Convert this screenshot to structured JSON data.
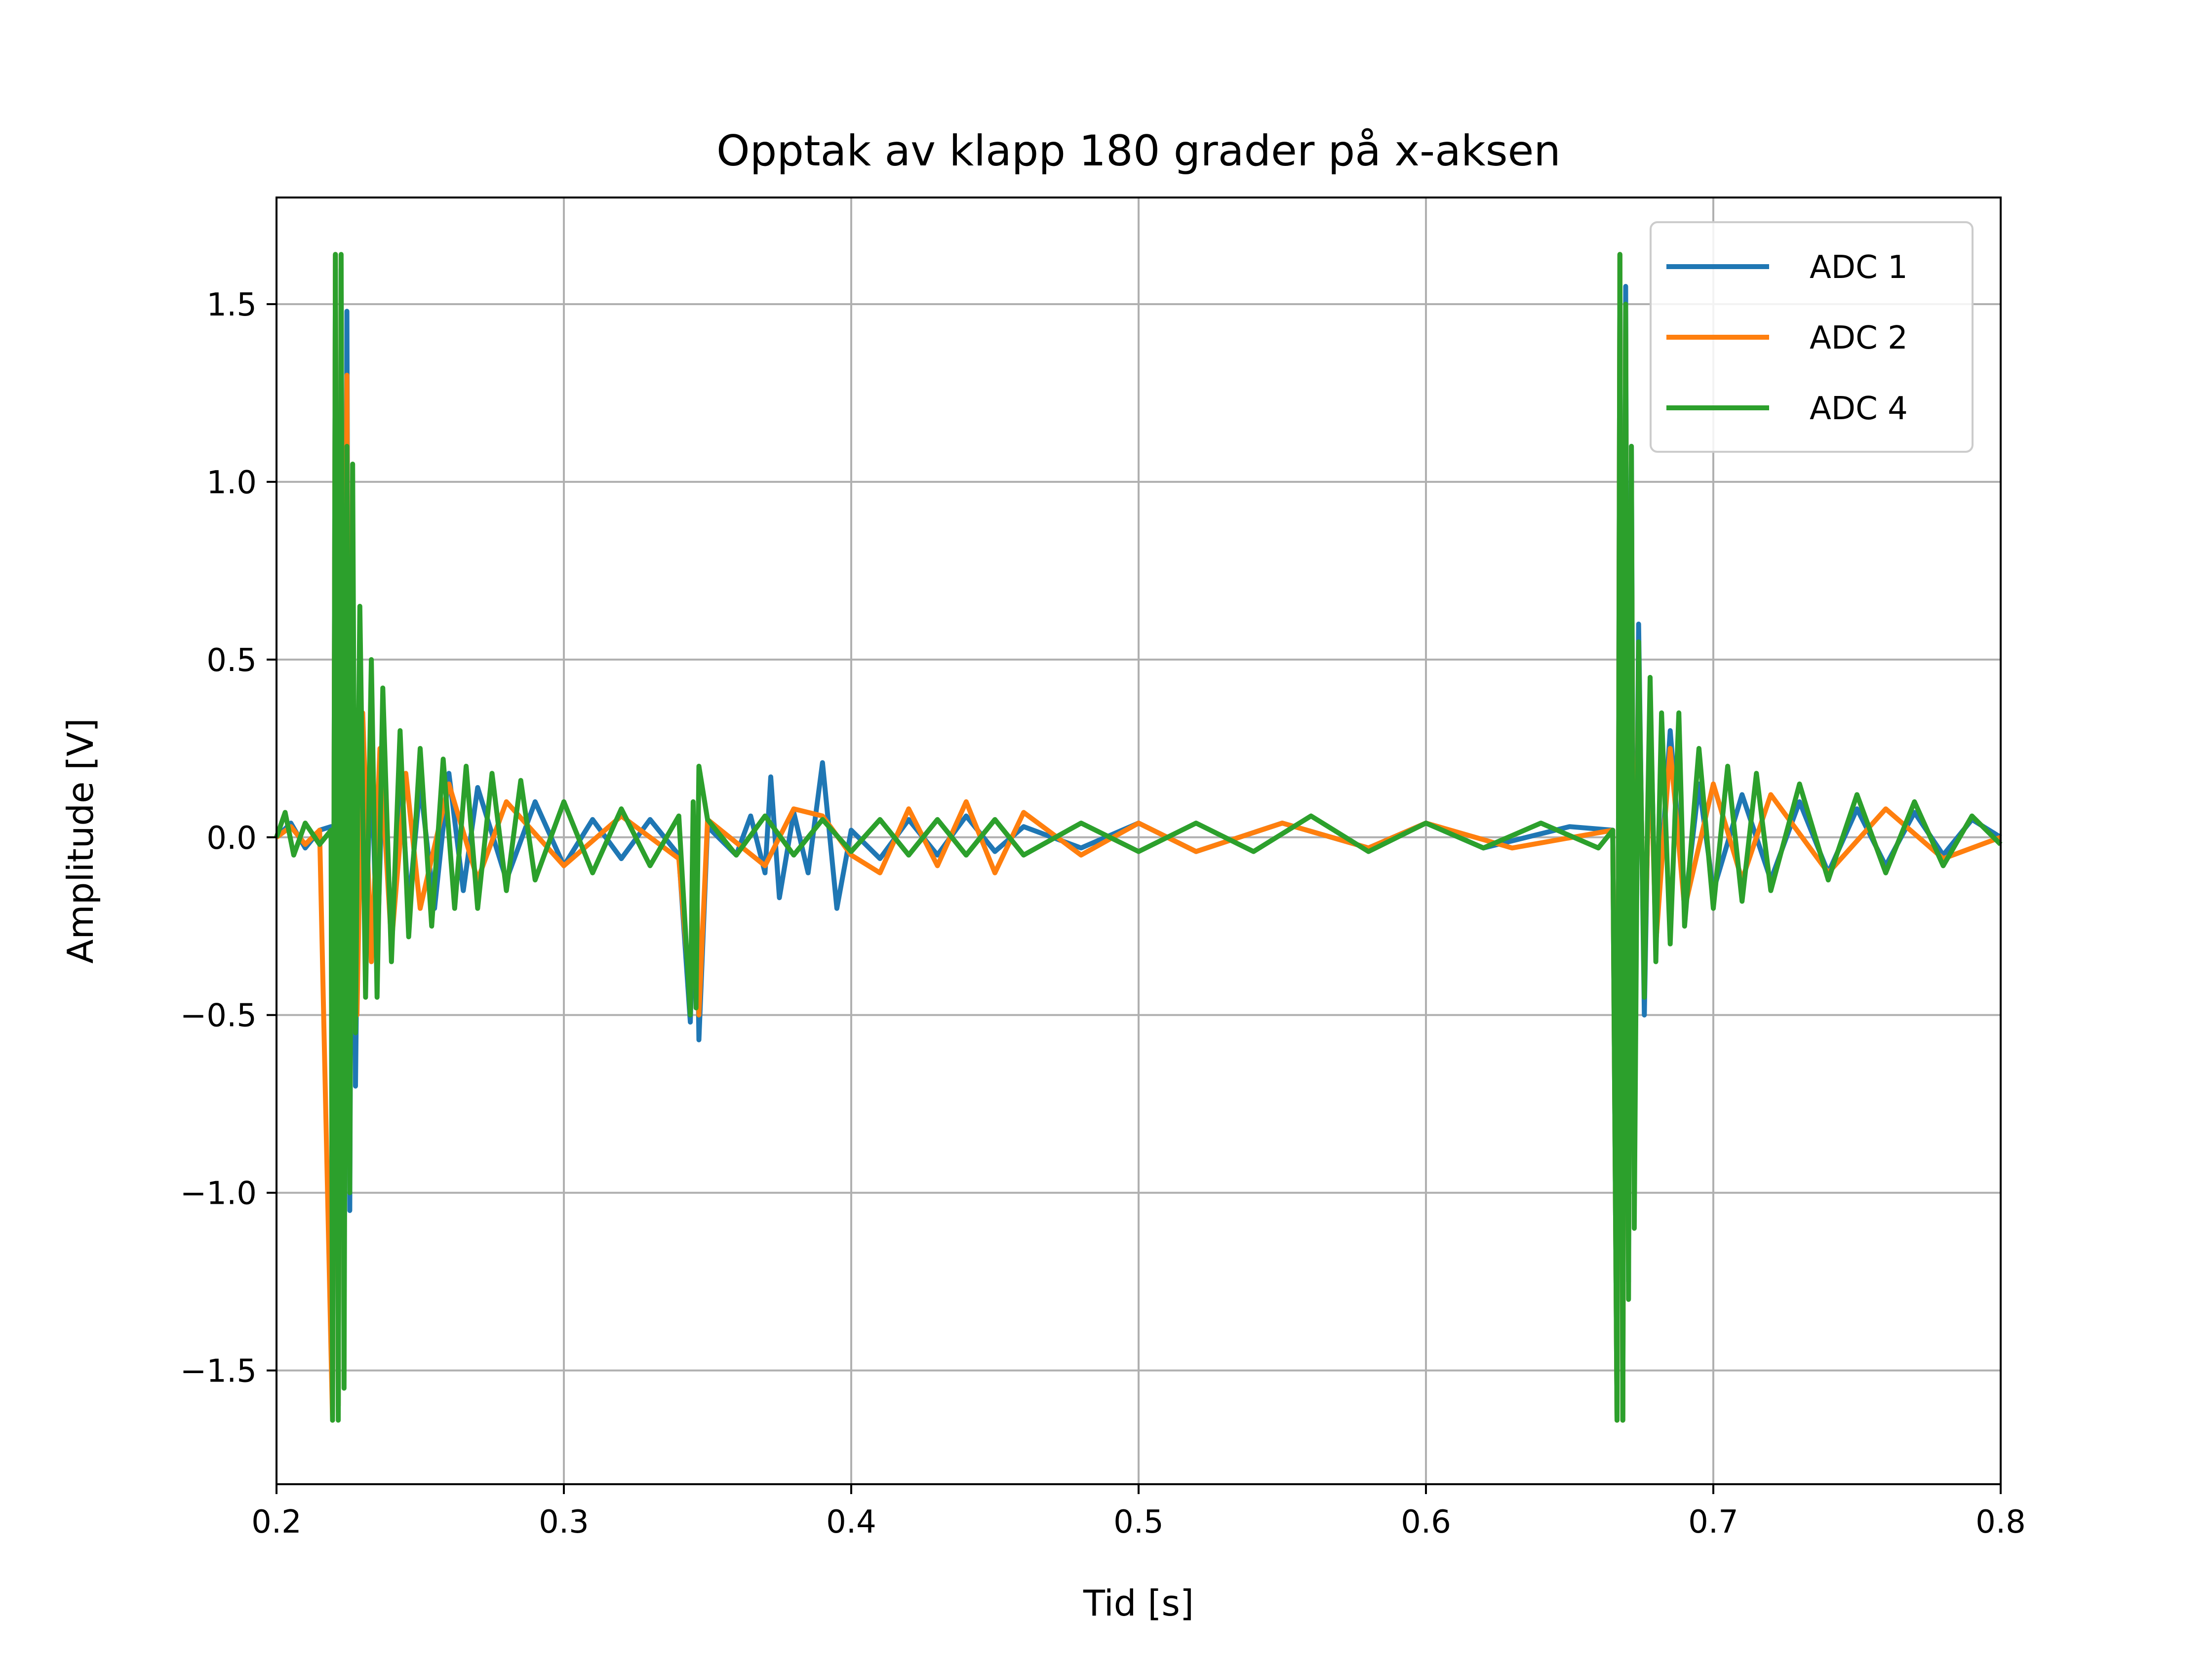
{
  "chart_data": {
    "type": "line",
    "title": "Opptak av klapp 180 grader på x-aksen",
    "xlabel": "Tid [s]",
    "ylabel": "Amplitude [V]",
    "xlim": [
      0.2,
      0.8
    ],
    "ylim": [
      -1.82,
      1.8
    ],
    "xticks": [
      0.2,
      0.3,
      0.4,
      0.5,
      0.6,
      0.7,
      0.8
    ],
    "xtick_labels": [
      "0.2",
      "0.3",
      "0.4",
      "0.5",
      "0.6",
      "0.7",
      "0.8"
    ],
    "yticks": [
      -1.5,
      -1.0,
      -0.5,
      0.0,
      0.5,
      1.0,
      1.5
    ],
    "ytick_labels": [
      "−1.5",
      "−1.0",
      "−0.5",
      "0.0",
      "0.5",
      "1.0",
      "1.5"
    ],
    "grid": true,
    "legend_position": "top-right",
    "series": [
      {
        "name": "ADC 1",
        "color": "#1f77b4",
        "points": [
          [
            0.2,
            0.0
          ],
          [
            0.205,
            0.04
          ],
          [
            0.21,
            -0.03
          ],
          [
            0.215,
            0.02
          ],
          [
            0.219,
            0.03
          ],
          [
            0.2195,
            -1.64
          ],
          [
            0.2205,
            1.64
          ],
          [
            0.2215,
            -1.6
          ],
          [
            0.2225,
            1.6
          ],
          [
            0.2235,
            -1.2
          ],
          [
            0.2245,
            1.48
          ],
          [
            0.2255,
            -1.05
          ],
          [
            0.2265,
            0.95
          ],
          [
            0.2275,
            -0.7
          ],
          [
            0.229,
            0.4
          ],
          [
            0.231,
            -0.3
          ],
          [
            0.233,
            0.25
          ],
          [
            0.235,
            -0.35
          ],
          [
            0.237,
            0.2
          ],
          [
            0.24,
            -0.3
          ],
          [
            0.243,
            0.2
          ],
          [
            0.246,
            -0.2
          ],
          [
            0.25,
            0.15
          ],
          [
            0.255,
            -0.2
          ],
          [
            0.26,
            0.18
          ],
          [
            0.265,
            -0.15
          ],
          [
            0.27,
            0.14
          ],
          [
            0.28,
            -0.12
          ],
          [
            0.29,
            0.1
          ],
          [
            0.3,
            -0.08
          ],
          [
            0.31,
            0.05
          ],
          [
            0.32,
            -0.06
          ],
          [
            0.33,
            0.05
          ],
          [
            0.34,
            -0.05
          ],
          [
            0.344,
            -0.52
          ],
          [
            0.346,
            0.05
          ],
          [
            0.347,
            -0.57
          ],
          [
            0.35,
            0.03
          ],
          [
            0.36,
            -0.05
          ],
          [
            0.365,
            0.06
          ],
          [
            0.37,
            -0.1
          ],
          [
            0.372,
            0.17
          ],
          [
            0.375,
            -0.17
          ],
          [
            0.38,
            0.07
          ],
          [
            0.385,
            -0.1
          ],
          [
            0.39,
            0.21
          ],
          [
            0.395,
            -0.2
          ],
          [
            0.4,
            0.02
          ],
          [
            0.41,
            -0.06
          ],
          [
            0.42,
            0.05
          ],
          [
            0.43,
            -0.05
          ],
          [
            0.44,
            0.06
          ],
          [
            0.45,
            -0.04
          ],
          [
            0.46,
            0.03
          ],
          [
            0.48,
            -0.03
          ],
          [
            0.5,
            0.04
          ],
          [
            0.52,
            -0.04
          ],
          [
            0.55,
            0.04
          ],
          [
            0.58,
            -0.03
          ],
          [
            0.6,
            0.04
          ],
          [
            0.62,
            -0.03
          ],
          [
            0.65,
            0.03
          ],
          [
            0.665,
            0.02
          ],
          [
            0.6665,
            -1.64
          ],
          [
            0.6675,
            1.64
          ],
          [
            0.6685,
            -1.64
          ],
          [
            0.6695,
            1.55
          ],
          [
            0.6705,
            -1.25
          ],
          [
            0.6715,
            1.1
          ],
          [
            0.6725,
            -0.9
          ],
          [
            0.674,
            0.6
          ],
          [
            0.676,
            -0.5
          ],
          [
            0.678,
            0.4
          ],
          [
            0.68,
            -0.3
          ],
          [
            0.685,
            0.3
          ],
          [
            0.69,
            -0.2
          ],
          [
            0.695,
            0.15
          ],
          [
            0.7,
            -0.15
          ],
          [
            0.71,
            0.12
          ],
          [
            0.72,
            -0.12
          ],
          [
            0.73,
            0.1
          ],
          [
            0.74,
            -0.1
          ],
          [
            0.75,
            0.08
          ],
          [
            0.76,
            -0.08
          ],
          [
            0.77,
            0.07
          ],
          [
            0.78,
            -0.05
          ],
          [
            0.79,
            0.05
          ],
          [
            0.8,
            0.0
          ]
        ]
      },
      {
        "name": "ADC 2",
        "color": "#ff7f0e",
        "points": [
          [
            0.2,
            0.0
          ],
          [
            0.205,
            0.03
          ],
          [
            0.21,
            -0.02
          ],
          [
            0.215,
            0.02
          ],
          [
            0.2195,
            -1.64
          ],
          [
            0.2205,
            1.64
          ],
          [
            0.2215,
            -1.6
          ],
          [
            0.2225,
            1.55
          ],
          [
            0.2235,
            -1.1
          ],
          [
            0.2245,
            1.3
          ],
          [
            0.2255,
            -0.85
          ],
          [
            0.2265,
            0.62
          ],
          [
            0.228,
            -0.5
          ],
          [
            0.23,
            0.35
          ],
          [
            0.233,
            -0.35
          ],
          [
            0.236,
            0.25
          ],
          [
            0.24,
            -0.3
          ],
          [
            0.245,
            0.18
          ],
          [
            0.25,
            -0.2
          ],
          [
            0.26,
            0.15
          ],
          [
            0.27,
            -0.12
          ],
          [
            0.28,
            0.1
          ],
          [
            0.3,
            -0.08
          ],
          [
            0.32,
            0.06
          ],
          [
            0.34,
            -0.06
          ],
          [
            0.344,
            -0.45
          ],
          [
            0.346,
            0.05
          ],
          [
            0.347,
            -0.5
          ],
          [
            0.35,
            0.05
          ],
          [
            0.37,
            -0.08
          ],
          [
            0.38,
            0.08
          ],
          [
            0.39,
            0.06
          ],
          [
            0.4,
            -0.05
          ],
          [
            0.41,
            -0.1
          ],
          [
            0.42,
            0.08
          ],
          [
            0.43,
            -0.08
          ],
          [
            0.44,
            0.1
          ],
          [
            0.45,
            -0.1
          ],
          [
            0.46,
            0.07
          ],
          [
            0.48,
            -0.05
          ],
          [
            0.5,
            0.04
          ],
          [
            0.52,
            -0.04
          ],
          [
            0.55,
            0.04
          ],
          [
            0.58,
            -0.03
          ],
          [
            0.6,
            0.04
          ],
          [
            0.63,
            -0.03
          ],
          [
            0.665,
            0.02
          ],
          [
            0.6665,
            -1.64
          ],
          [
            0.6675,
            1.64
          ],
          [
            0.6685,
            -1.64
          ],
          [
            0.6695,
            1.44
          ],
          [
            0.6705,
            -1.2
          ],
          [
            0.6715,
            1.0
          ],
          [
            0.6725,
            -0.8
          ],
          [
            0.674,
            0.5
          ],
          [
            0.676,
            -0.4
          ],
          [
            0.678,
            0.3
          ],
          [
            0.68,
            -0.3
          ],
          [
            0.685,
            0.25
          ],
          [
            0.69,
            -0.2
          ],
          [
            0.7,
            0.15
          ],
          [
            0.71,
            -0.12
          ],
          [
            0.72,
            0.12
          ],
          [
            0.74,
            -0.1
          ],
          [
            0.76,
            0.08
          ],
          [
            0.78,
            -0.06
          ],
          [
            0.8,
            0.0
          ]
        ]
      },
      {
        "name": "ADC 4",
        "color": "#2ca02c",
        "points": [
          [
            0.2,
            0.0
          ],
          [
            0.203,
            0.07
          ],
          [
            0.206,
            -0.05
          ],
          [
            0.21,
            0.04
          ],
          [
            0.215,
            -0.02
          ],
          [
            0.219,
            0.02
          ],
          [
            0.2195,
            -1.64
          ],
          [
            0.2205,
            1.64
          ],
          [
            0.2215,
            -1.64
          ],
          [
            0.2225,
            1.64
          ],
          [
            0.2235,
            -1.55
          ],
          [
            0.2245,
            1.1
          ],
          [
            0.2255,
            -1.0
          ],
          [
            0.2265,
            1.05
          ],
          [
            0.2275,
            -0.55
          ],
          [
            0.229,
            0.65
          ],
          [
            0.231,
            -0.45
          ],
          [
            0.233,
            0.5
          ],
          [
            0.235,
            -0.45
          ],
          [
            0.237,
            0.42
          ],
          [
            0.24,
            -0.35
          ],
          [
            0.243,
            0.3
          ],
          [
            0.246,
            -0.28
          ],
          [
            0.25,
            0.25
          ],
          [
            0.254,
            -0.25
          ],
          [
            0.258,
            0.22
          ],
          [
            0.262,
            -0.2
          ],
          [
            0.266,
            0.2
          ],
          [
            0.27,
            -0.2
          ],
          [
            0.275,
            0.18
          ],
          [
            0.28,
            -0.15
          ],
          [
            0.285,
            0.16
          ],
          [
            0.29,
            -0.12
          ],
          [
            0.3,
            0.1
          ],
          [
            0.31,
            -0.1
          ],
          [
            0.32,
            0.08
          ],
          [
            0.33,
            -0.08
          ],
          [
            0.34,
            0.06
          ],
          [
            0.344,
            -0.5
          ],
          [
            0.345,
            0.1
          ],
          [
            0.346,
            -0.48
          ],
          [
            0.347,
            0.2
          ],
          [
            0.35,
            0.05
          ],
          [
            0.36,
            -0.05
          ],
          [
            0.37,
            0.06
          ],
          [
            0.38,
            -0.05
          ],
          [
            0.39,
            0.05
          ],
          [
            0.4,
            -0.04
          ],
          [
            0.41,
            0.05
          ],
          [
            0.42,
            -0.05
          ],
          [
            0.43,
            0.05
          ],
          [
            0.44,
            -0.05
          ],
          [
            0.45,
            0.05
          ],
          [
            0.46,
            -0.05
          ],
          [
            0.48,
            0.04
          ],
          [
            0.5,
            -0.04
          ],
          [
            0.52,
            0.04
          ],
          [
            0.54,
            -0.04
          ],
          [
            0.56,
            0.06
          ],
          [
            0.58,
            -0.04
          ],
          [
            0.6,
            0.04
          ],
          [
            0.62,
            -0.03
          ],
          [
            0.64,
            0.04
          ],
          [
            0.66,
            -0.03
          ],
          [
            0.665,
            0.02
          ],
          [
            0.6665,
            -1.64
          ],
          [
            0.6675,
            1.64
          ],
          [
            0.6685,
            -1.64
          ],
          [
            0.6695,
            1.5
          ],
          [
            0.6705,
            -1.3
          ],
          [
            0.6715,
            1.1
          ],
          [
            0.6725,
            -1.1
          ],
          [
            0.674,
            0.55
          ],
          [
            0.676,
            -0.45
          ],
          [
            0.678,
            0.45
          ],
          [
            0.68,
            -0.35
          ],
          [
            0.682,
            0.35
          ],
          [
            0.685,
            -0.3
          ],
          [
            0.688,
            0.35
          ],
          [
            0.69,
            -0.25
          ],
          [
            0.695,
            0.25
          ],
          [
            0.7,
            -0.2
          ],
          [
            0.705,
            0.2
          ],
          [
            0.71,
            -0.18
          ],
          [
            0.715,
            0.18
          ],
          [
            0.72,
            -0.15
          ],
          [
            0.73,
            0.15
          ],
          [
            0.74,
            -0.12
          ],
          [
            0.75,
            0.12
          ],
          [
            0.76,
            -0.1
          ],
          [
            0.77,
            0.1
          ],
          [
            0.78,
            -0.08
          ],
          [
            0.79,
            0.06
          ],
          [
            0.8,
            -0.02
          ]
        ]
      }
    ]
  }
}
